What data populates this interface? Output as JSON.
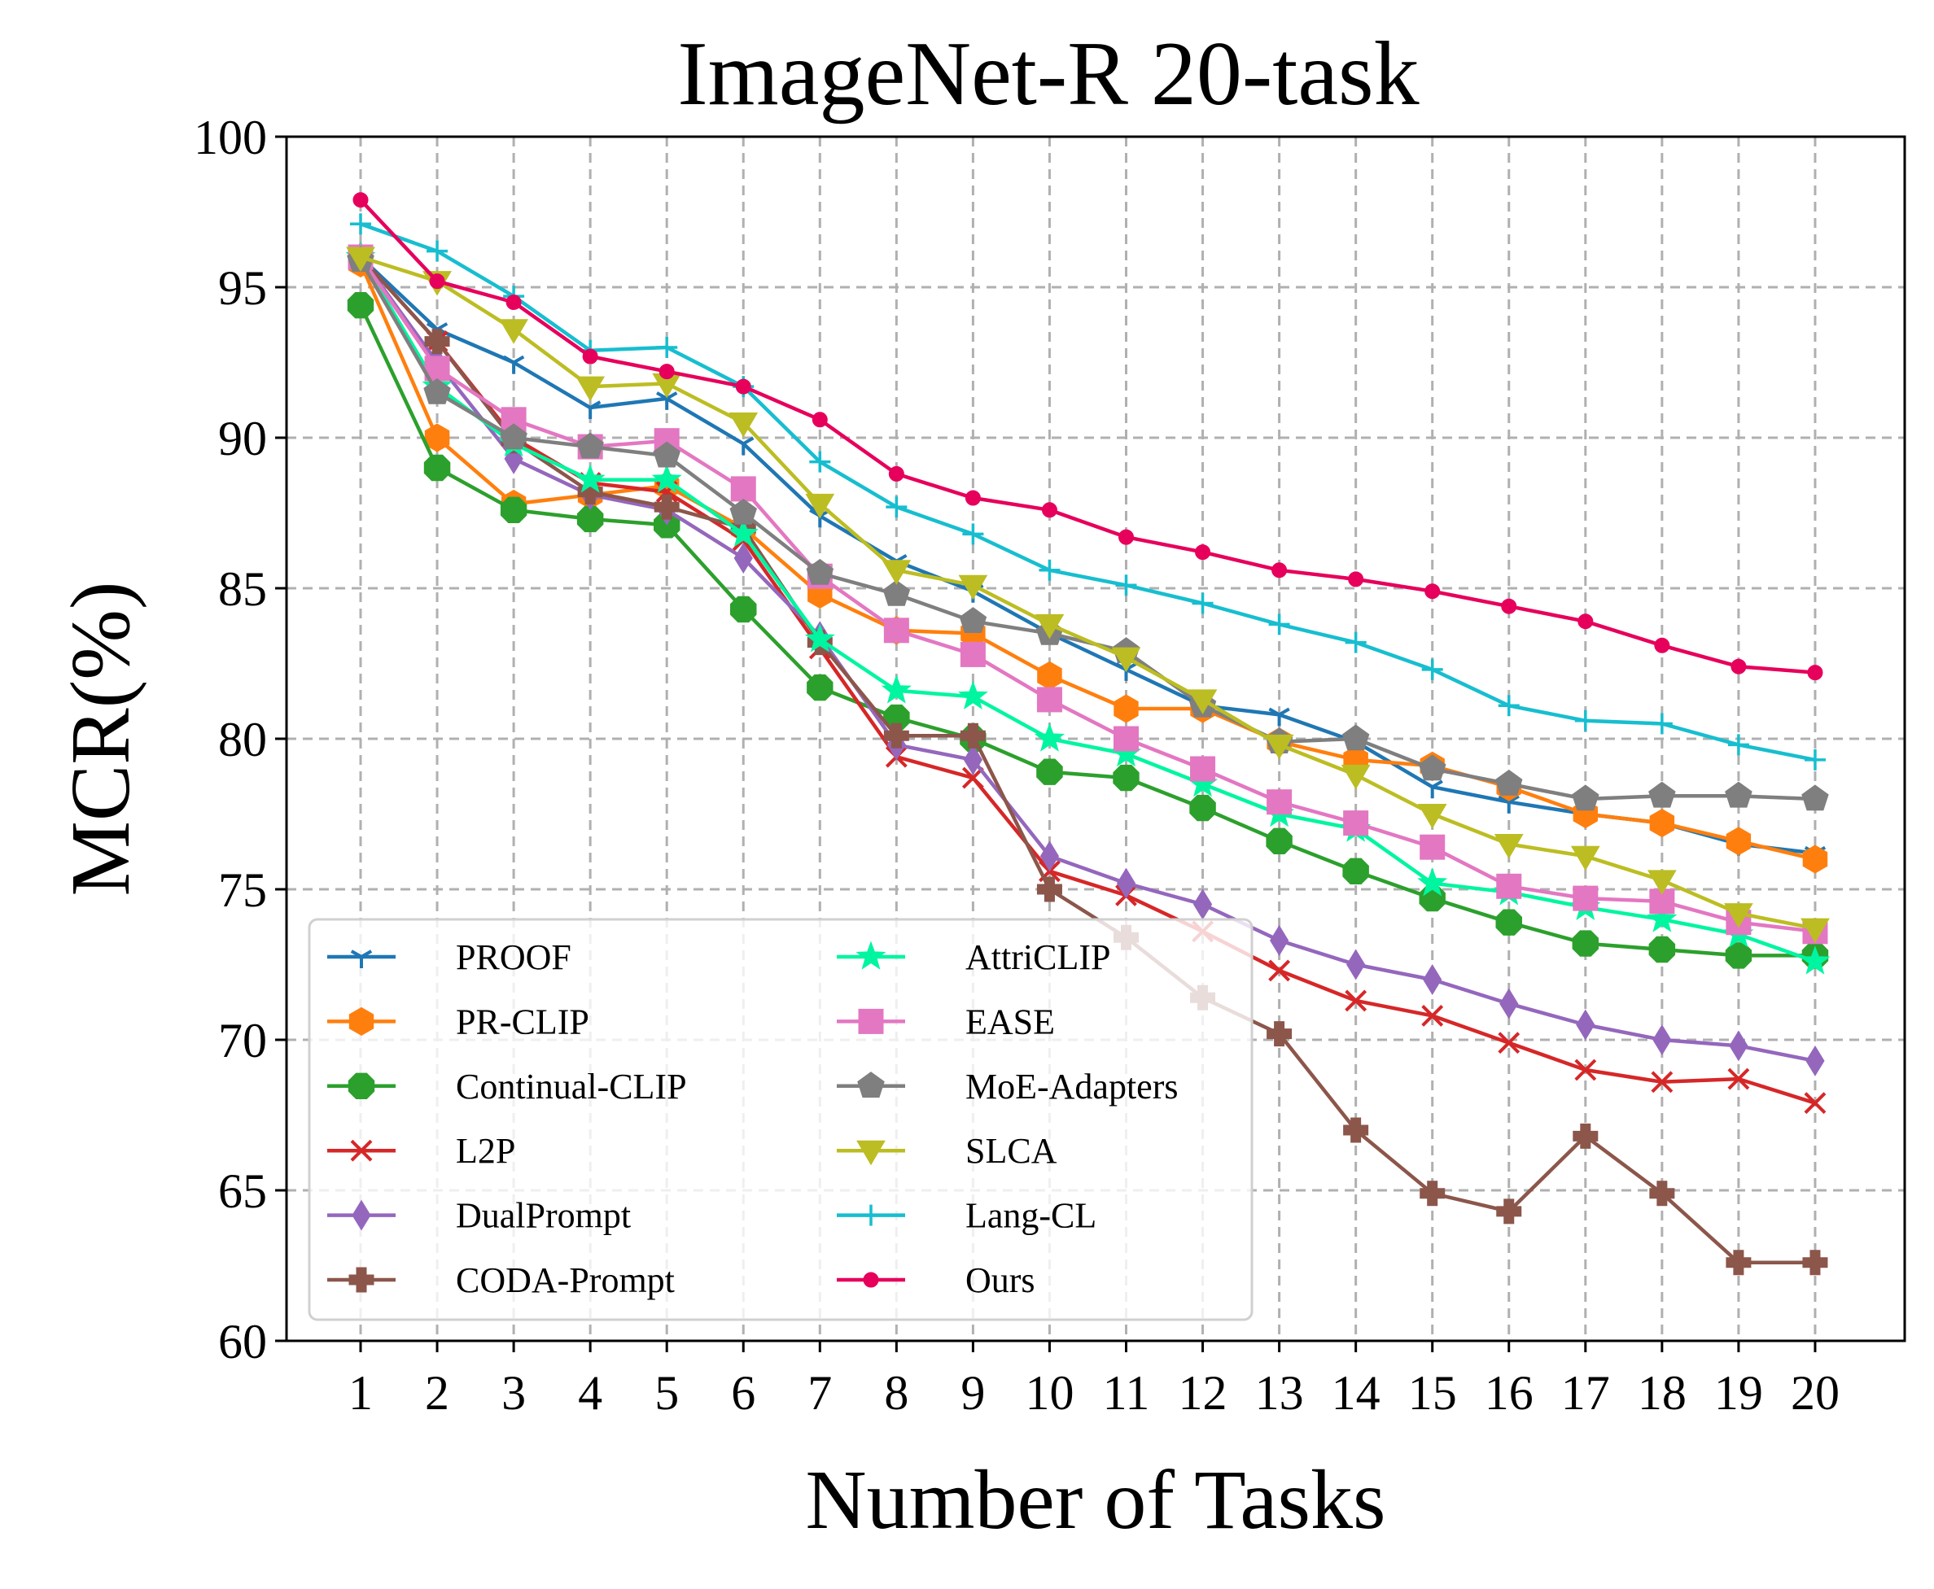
{
  "chart_data": {
    "type": "line",
    "title": "ImageNet-R 20-task",
    "xlabel": "Number of Tasks",
    "ylabel": "MCR(%)",
    "x": [
      1,
      2,
      3,
      4,
      5,
      6,
      7,
      8,
      9,
      10,
      11,
      12,
      13,
      14,
      15,
      16,
      17,
      18,
      19,
      20
    ],
    "xticks": [
      "1",
      "2",
      "3",
      "4",
      "5",
      "6",
      "7",
      "8",
      "9",
      "10",
      "11",
      "12",
      "13",
      "14",
      "15",
      "16",
      "17",
      "18",
      "19",
      "20"
    ],
    "ylim": [
      60,
      100
    ],
    "yticks": [
      "60",
      "65",
      "70",
      "75",
      "80",
      "85",
      "90",
      "95",
      "100"
    ],
    "grid": true,
    "legend_position": "lower-left",
    "legend_columns": 2,
    "series": [
      {
        "name": "PROOF",
        "color": "#1f77b4",
        "marker": "tri_down",
        "values": [
          96.0,
          93.6,
          92.5,
          91.0,
          91.3,
          89.8,
          87.4,
          85.9,
          84.9,
          83.5,
          82.3,
          81.1,
          80.8,
          79.9,
          78.4,
          77.9,
          77.5,
          77.2,
          76.5,
          76.2
        ]
      },
      {
        "name": "PR-CLIP",
        "color": "#ff7f0e",
        "marker": "hexagon",
        "values": [
          95.8,
          90.0,
          87.8,
          88.1,
          88.4,
          87.0,
          84.8,
          83.6,
          83.5,
          82.1,
          81.0,
          81.0,
          79.9,
          79.3,
          79.1,
          78.4,
          77.5,
          77.2,
          76.6,
          76.0
        ]
      },
      {
        "name": "Continual-CLIP",
        "color": "#2ca02c",
        "marker": "octagon",
        "values": [
          94.4,
          89.0,
          87.6,
          87.3,
          87.1,
          84.3,
          81.7,
          80.7,
          80.0,
          78.9,
          78.7,
          77.7,
          76.6,
          75.6,
          74.7,
          73.9,
          73.2,
          73.0,
          72.8,
          72.8
        ]
      },
      {
        "name": "L2P",
        "color": "#d62728",
        "marker": "x",
        "values": [
          96.0,
          93.2,
          90.0,
          88.5,
          88.2,
          86.6,
          83.0,
          79.4,
          78.7,
          75.6,
          74.8,
          73.6,
          72.3,
          71.3,
          70.8,
          69.9,
          69.0,
          68.6,
          68.7,
          67.9
        ]
      },
      {
        "name": "DualPrompt",
        "color": "#9467bd",
        "marker": "thin_diamond",
        "values": [
          96.0,
          92.5,
          89.3,
          88.1,
          87.6,
          86.0,
          83.4,
          79.8,
          79.3,
          76.1,
          75.2,
          74.5,
          73.3,
          72.5,
          72.0,
          71.2,
          70.5,
          70.0,
          69.8,
          69.3
        ]
      },
      {
        "name": "CODA-Prompt",
        "color": "#8c564b",
        "marker": "plus_filled",
        "values": [
          96.0,
          93.2,
          89.9,
          88.2,
          87.7,
          87.0,
          83.2,
          80.1,
          80.1,
          75.0,
          73.4,
          71.4,
          70.2,
          67.0,
          64.9,
          64.3,
          66.8,
          64.9,
          62.6,
          62.6
        ]
      },
      {
        "name": "AttriCLIP",
        "color": "#00f5a0",
        "marker": "star",
        "values": [
          96.0,
          91.7,
          89.8,
          88.6,
          88.6,
          86.8,
          83.3,
          81.6,
          81.4,
          80.0,
          79.5,
          78.5,
          77.5,
          77.0,
          75.2,
          74.9,
          74.4,
          74.0,
          73.5,
          72.6
        ]
      },
      {
        "name": "EASE",
        "color": "#e377c2",
        "marker": "square",
        "values": [
          96.0,
          92.3,
          90.6,
          89.7,
          89.9,
          88.3,
          85.4,
          83.6,
          82.8,
          81.3,
          80.0,
          79.0,
          77.9,
          77.2,
          76.4,
          75.1,
          74.7,
          74.6,
          73.9,
          73.6
        ]
      },
      {
        "name": "MoE-Adapters",
        "color": "#7f7f7f",
        "marker": "pentagon",
        "values": [
          95.9,
          91.5,
          90.0,
          89.7,
          89.4,
          87.5,
          85.5,
          84.8,
          83.9,
          83.5,
          82.9,
          81.1,
          79.9,
          80.0,
          79.0,
          78.5,
          78.0,
          78.1,
          78.1,
          78.0
        ]
      },
      {
        "name": "SLCA",
        "color": "#bcbd22",
        "marker": "triangle_down",
        "values": [
          96.0,
          95.2,
          93.6,
          91.7,
          91.8,
          90.5,
          87.8,
          85.6,
          85.1,
          83.8,
          82.7,
          81.3,
          79.8,
          78.8,
          77.5,
          76.5,
          76.1,
          75.3,
          74.2,
          73.7
        ]
      },
      {
        "name": "Lang-CL",
        "color": "#17becf",
        "marker": "plus",
        "values": [
          97.1,
          96.2,
          94.7,
          92.9,
          93.0,
          91.7,
          89.2,
          87.7,
          86.8,
          85.6,
          85.1,
          84.5,
          83.8,
          83.2,
          82.3,
          81.1,
          80.6,
          80.5,
          79.8,
          79.3
        ]
      },
      {
        "name": "Ours",
        "color": "#e6005c",
        "marker": "dot",
        "values": [
          97.9,
          95.2,
          94.5,
          92.7,
          92.2,
          91.7,
          90.6,
          88.8,
          88.0,
          87.6,
          86.7,
          86.2,
          85.6,
          85.3,
          84.9,
          84.4,
          83.9,
          83.1,
          82.4,
          82.2
        ]
      }
    ]
  }
}
